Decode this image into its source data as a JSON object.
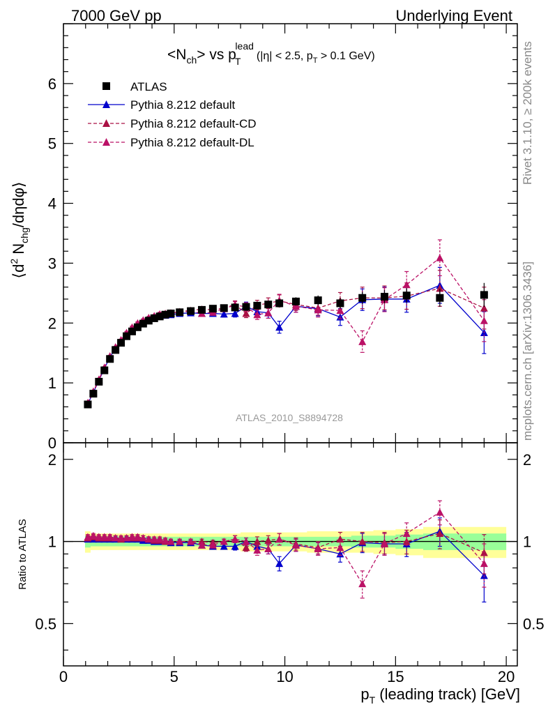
{
  "header": {
    "left": "7000 GeV pp",
    "right": "Underlying Event"
  },
  "side_labels": {
    "rivet": "Rivet 3.1.10, ≥ 200k events",
    "source": "mcplots.cern.ch [arXiv:1306.3436]"
  },
  "analysis_id": "ATLAS_2010_S8894728",
  "chart_data": [
    {
      "type": "scatter",
      "panel": "main",
      "title": "<Nch> vs pT lead (|η| < 2.5, pT > 0.1 GeV)",
      "title_parts": {
        "t1": "<N",
        "t1sub": "ch",
        "t2": "> vs p",
        "t2sub": "T",
        "t2sup": "lead",
        "cut1": "(|η| < 2.5, p",
        "cut1sub": "T",
        "cut2": " > 0.1 GeV)"
      },
      "ylabel": "⟨d² Nchg/dηdφ⟩",
      "ylabel_parts": {
        "a": "⟨d",
        "sup": "2",
        "b": " N",
        "sub": "chg",
        "c": "/dηdφ⟩"
      },
      "xlim": [
        0,
        20.5
      ],
      "ylim": [
        0,
        7
      ],
      "yticks": [
        0,
        1,
        2,
        3,
        4,
        5,
        6
      ],
      "legend_position": "top-left",
      "x": [
        1.1,
        1.35,
        1.6,
        1.85,
        2.1,
        2.35,
        2.6,
        2.85,
        3.1,
        3.35,
        3.6,
        3.85,
        4.1,
        4.35,
        4.6,
        4.85,
        5.25,
        5.75,
        6.25,
        6.75,
        7.25,
        7.75,
        8.25,
        8.75,
        9.25,
        9.75,
        10.5,
        11.5,
        12.5,
        13.5,
        14.5,
        15.5,
        17.0,
        19.0
      ],
      "series": [
        {
          "name": "ATLAS",
          "style": "data",
          "color": "#000000",
          "values": [
            0.64,
            0.82,
            1.02,
            1.21,
            1.4,
            1.55,
            1.67,
            1.78,
            1.86,
            1.93,
            1.99,
            2.04,
            2.08,
            2.11,
            2.14,
            2.16,
            2.18,
            2.2,
            2.22,
            2.24,
            2.25,
            2.26,
            2.27,
            2.29,
            2.31,
            2.33,
            2.36,
            2.38,
            2.33,
            2.42,
            2.44,
            2.46,
            2.42,
            2.47
          ],
          "errors": [
            0.03,
            0.03,
            0.03,
            0.04,
            0.04,
            0.04,
            0.04,
            0.04,
            0.04,
            0.04,
            0.04,
            0.04,
            0.04,
            0.04,
            0.04,
            0.04,
            0.04,
            0.04,
            0.05,
            0.05,
            0.05,
            0.05,
            0.05,
            0.06,
            0.06,
            0.07,
            0.07,
            0.08,
            0.09,
            0.1,
            0.11,
            0.12,
            0.15,
            0.2
          ]
        },
        {
          "name": "Pythia 8.212 default",
          "style": "solid",
          "color": "#0000cc",
          "values": [
            0.65,
            0.84,
            1.04,
            1.24,
            1.43,
            1.58,
            1.7,
            1.82,
            1.9,
            1.97,
            2.02,
            2.06,
            2.09,
            2.11,
            2.13,
            2.14,
            2.16,
            2.17,
            2.16,
            2.16,
            2.15,
            2.16,
            2.28,
            2.19,
            2.17,
            1.93,
            2.28,
            2.24,
            2.1,
            2.39,
            2.4,
            2.4,
            2.63,
            1.84
          ],
          "errors": [
            0.01,
            0.01,
            0.01,
            0.01,
            0.01,
            0.01,
            0.01,
            0.02,
            0.02,
            0.02,
            0.02,
            0.02,
            0.02,
            0.03,
            0.03,
            0.03,
            0.03,
            0.04,
            0.04,
            0.05,
            0.05,
            0.06,
            0.07,
            0.08,
            0.09,
            0.1,
            0.1,
            0.12,
            0.14,
            0.18,
            0.2,
            0.22,
            0.3,
            0.35
          ]
        },
        {
          "name": "Pythia 8.212 default-CD",
          "style": "dashed",
          "color": "#aa1144",
          "values": [
            0.66,
            0.85,
            1.05,
            1.25,
            1.44,
            1.59,
            1.71,
            1.83,
            1.92,
            1.99,
            2.04,
            2.08,
            2.11,
            2.14,
            2.15,
            2.16,
            2.19,
            2.21,
            2.23,
            2.22,
            2.25,
            2.31,
            2.16,
            2.3,
            2.33,
            2.37,
            2.31,
            2.25,
            2.37,
            2.42,
            2.42,
            2.45,
            2.58,
            2.25
          ],
          "errors": [
            0.01,
            0.01,
            0.01,
            0.01,
            0.01,
            0.01,
            0.01,
            0.02,
            0.02,
            0.02,
            0.02,
            0.02,
            0.02,
            0.03,
            0.03,
            0.03,
            0.03,
            0.04,
            0.04,
            0.05,
            0.05,
            0.06,
            0.07,
            0.08,
            0.09,
            0.1,
            0.1,
            0.12,
            0.14,
            0.18,
            0.2,
            0.22,
            0.3,
            0.35
          ]
        },
        {
          "name": "Pythia 8.212 default-DL",
          "style": "dashed",
          "color": "#bb1166",
          "values": [
            0.67,
            0.86,
            1.06,
            1.26,
            1.45,
            1.6,
            1.72,
            1.84,
            1.93,
            2.0,
            2.05,
            2.09,
            2.12,
            2.15,
            2.16,
            2.17,
            2.18,
            2.2,
            2.16,
            2.18,
            2.24,
            2.3,
            2.27,
            2.14,
            2.17,
            2.38,
            2.28,
            2.22,
            2.21,
            1.69,
            2.39,
            2.64,
            3.09,
            2.04
          ],
          "errors": [
            0.01,
            0.01,
            0.01,
            0.01,
            0.01,
            0.01,
            0.01,
            0.02,
            0.02,
            0.02,
            0.02,
            0.02,
            0.02,
            0.03,
            0.03,
            0.03,
            0.03,
            0.04,
            0.04,
            0.05,
            0.05,
            0.06,
            0.07,
            0.08,
            0.09,
            0.1,
            0.1,
            0.12,
            0.14,
            0.18,
            0.2,
            0.22,
            0.3,
            0.35
          ]
        }
      ]
    },
    {
      "type": "scatter",
      "panel": "ratio",
      "ylabel": "Ratio to ATLAS",
      "xlabel": "pT (leading track) [GeV]",
      "xlabel_parts": {
        "a": "p",
        "sub": "T",
        "b": " (leading track) [GeV]"
      },
      "xlim": [
        0,
        20.5
      ],
      "ylim": [
        0.35,
        2.3
      ],
      "log_y": true,
      "yticks": [
        0.5,
        1,
        2
      ],
      "xticks": [
        0,
        5,
        10,
        15,
        20
      ],
      "band_colors": {
        "inner": "#99ff99",
        "outer": "#ffff99"
      },
      "band_inner_halfwidth": [
        0.05,
        0.04,
        0.04,
        0.04,
        0.04,
        0.04,
        0.04,
        0.04,
        0.04,
        0.04,
        0.04,
        0.04,
        0.04,
        0.04,
        0.04,
        0.04,
        0.04,
        0.04,
        0.04,
        0.04,
        0.04,
        0.04,
        0.04,
        0.04,
        0.04,
        0.04,
        0.04,
        0.04,
        0.04,
        0.05,
        0.05,
        0.06,
        0.07,
        0.07
      ],
      "band_outer_halfwidth": [
        0.09,
        0.07,
        0.07,
        0.07,
        0.07,
        0.07,
        0.07,
        0.07,
        0.07,
        0.07,
        0.07,
        0.07,
        0.07,
        0.07,
        0.07,
        0.07,
        0.07,
        0.07,
        0.07,
        0.07,
        0.07,
        0.07,
        0.08,
        0.08,
        0.08,
        0.08,
        0.08,
        0.09,
        0.09,
        0.09,
        0.1,
        0.11,
        0.13,
        0.13
      ],
      "series": [
        {
          "name": "Pythia 8.212 default",
          "values": [
            1.02,
            1.02,
            1.02,
            1.02,
            1.02,
            1.02,
            1.02,
            1.02,
            1.02,
            1.02,
            1.01,
            1.01,
            1.0,
            1.0,
            1.0,
            0.99,
            0.99,
            0.99,
            0.97,
            0.96,
            0.96,
            0.96,
            1.0,
            0.96,
            0.94,
            0.83,
            0.97,
            0.94,
            0.9,
            0.99,
            0.98,
            0.98,
            1.09,
            0.75
          ],
          "errors": [
            0.02,
            0.02,
            0.02,
            0.02,
            0.02,
            0.02,
            0.02,
            0.02,
            0.02,
            0.02,
            0.02,
            0.02,
            0.02,
            0.02,
            0.02,
            0.02,
            0.02,
            0.02,
            0.02,
            0.02,
            0.02,
            0.03,
            0.03,
            0.04,
            0.04,
            0.05,
            0.05,
            0.05,
            0.06,
            0.08,
            0.09,
            0.1,
            0.13,
            0.15
          ]
        },
        {
          "name": "Pythia 8.212 default-CD",
          "values": [
            1.03,
            1.04,
            1.03,
            1.03,
            1.03,
            1.03,
            1.02,
            1.03,
            1.03,
            1.03,
            1.03,
            1.02,
            1.01,
            1.01,
            1.0,
            1.0,
            1.0,
            1.0,
            1.0,
            0.99,
            1.0,
            1.02,
            0.95,
            1.0,
            1.01,
            1.02,
            0.98,
            0.95,
            1.02,
            1.0,
            0.99,
            1.0,
            1.07,
            0.91
          ],
          "errors": [
            0.02,
            0.02,
            0.02,
            0.02,
            0.02,
            0.02,
            0.02,
            0.02,
            0.02,
            0.02,
            0.02,
            0.02,
            0.02,
            0.02,
            0.02,
            0.02,
            0.02,
            0.02,
            0.02,
            0.02,
            0.02,
            0.03,
            0.03,
            0.04,
            0.04,
            0.05,
            0.05,
            0.05,
            0.06,
            0.08,
            0.09,
            0.1,
            0.13,
            0.15
          ]
        },
        {
          "name": "Pythia 8.212 default-DL",
          "values": [
            1.04,
            1.05,
            1.04,
            1.04,
            1.04,
            1.03,
            1.03,
            1.03,
            1.04,
            1.04,
            1.03,
            1.02,
            1.02,
            1.02,
            1.01,
            1.0,
            1.0,
            1.0,
            0.97,
            0.97,
            1.0,
            1.02,
            1.0,
            0.93,
            0.94,
            1.02,
            0.97,
            0.94,
            0.95,
            0.7,
            0.98,
            1.07,
            1.28,
            0.83
          ],
          "errors": [
            0.02,
            0.02,
            0.02,
            0.02,
            0.02,
            0.02,
            0.02,
            0.02,
            0.02,
            0.02,
            0.02,
            0.02,
            0.02,
            0.02,
            0.02,
            0.02,
            0.02,
            0.02,
            0.02,
            0.02,
            0.02,
            0.03,
            0.03,
            0.04,
            0.04,
            0.05,
            0.05,
            0.05,
            0.06,
            0.08,
            0.09,
            0.1,
            0.13,
            0.15
          ]
        }
      ]
    }
  ]
}
